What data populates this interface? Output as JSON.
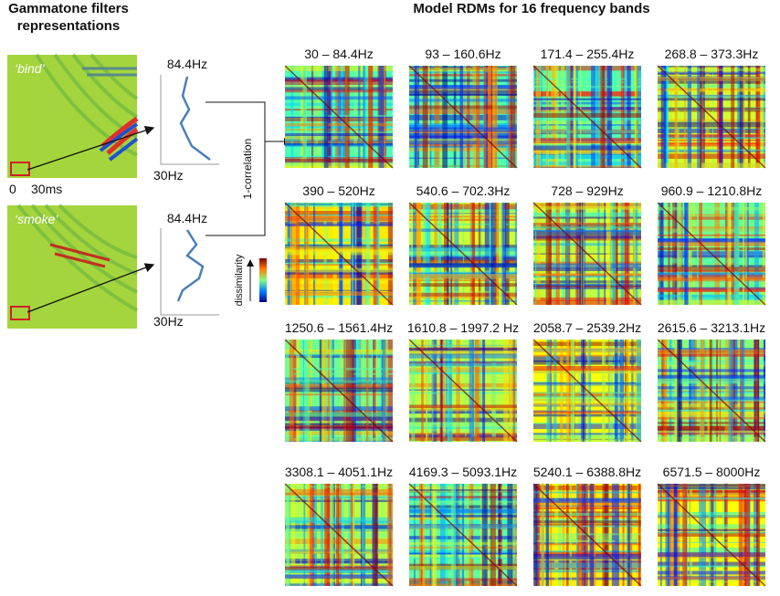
{
  "left_panel": {
    "title": [
      "Gammatone filters",
      "representations"
    ],
    "spectrograms": [
      {
        "word": "‘bind’"
      },
      {
        "word": "‘smoke’"
      }
    ],
    "time_axis": {
      "start": "0",
      "end": "30ms"
    },
    "profiles": [
      {
        "top": "84.4Hz",
        "bottom": "30Hz"
      },
      {
        "top": "84.4Hz",
        "bottom": "30Hz"
      }
    ]
  },
  "connector_label": "1-correlation",
  "colorbar_label": "dissimilarity",
  "rdm_panel": {
    "title": "Model RDMs for 16 frequency bands",
    "bands": [
      "30 – 84.4Hz",
      "93 – 160.6Hz",
      "171.4 – 255.4Hz",
      "268.8 – 373.3Hz",
      "390 – 520Hz",
      "540.6 – 702.3Hz",
      "728 – 929Hz",
      "960.9 – 1210.8Hz",
      "1250.6 – 1561.4Hz",
      "1610.8 – 1997.2 Hz",
      "2058.7 – 2539.2Hz",
      "2615.6 – 3213.1Hz",
      "3308.1 – 4051.1Hz",
      "4169.3 – 5093.1Hz",
      "5240.1 – 6388.8Hz",
      "6571.5 – 8000Hz"
    ]
  }
}
